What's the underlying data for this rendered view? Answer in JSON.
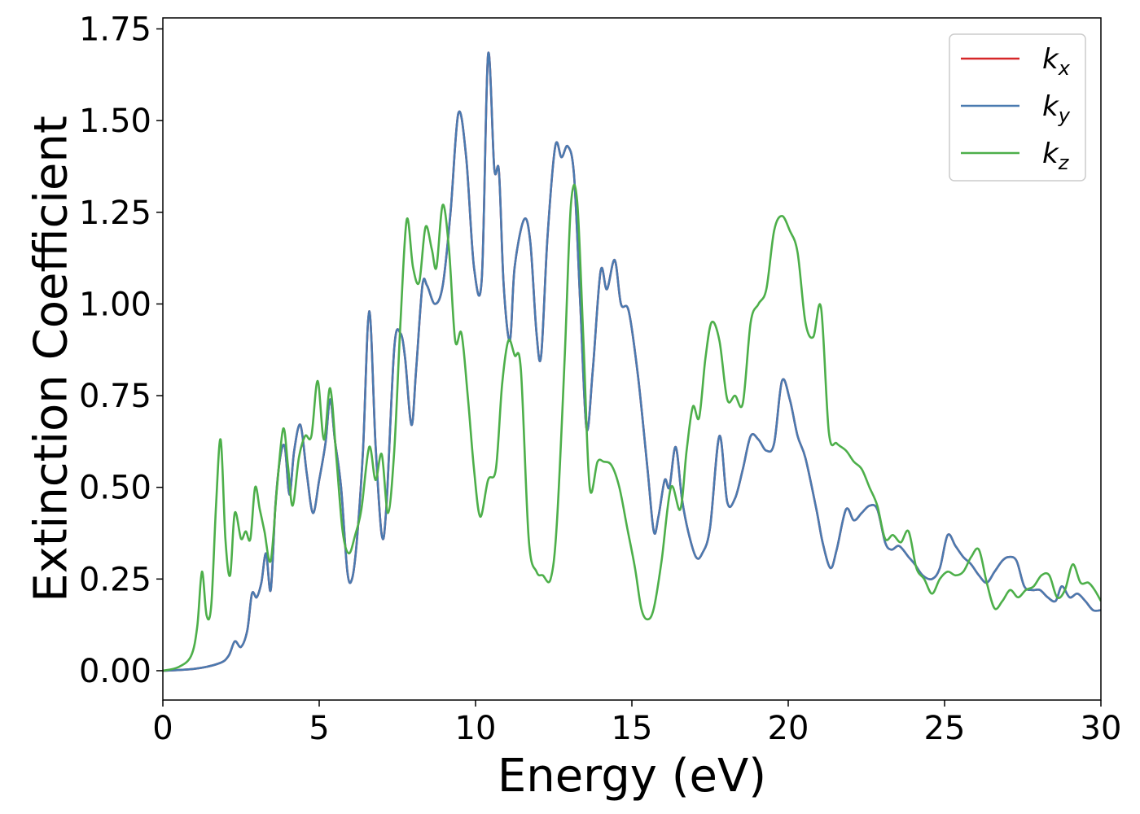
{
  "chart_data": {
    "type": "line",
    "title": "",
    "xlabel": "Energy (eV)",
    "ylabel": "Extinction Coefficient",
    "xlim": [
      0,
      30
    ],
    "ylim": [
      -0.08,
      1.78
    ],
    "xticks": [
      0,
      5,
      10,
      15,
      20,
      25,
      30
    ],
    "xtick_labels": [
      "0",
      "5",
      "10",
      "15",
      "20",
      "25",
      "30"
    ],
    "yticks": [
      0,
      0.25,
      0.5,
      0.75,
      1.0,
      1.25,
      1.5,
      1.75
    ],
    "ytick_labels": [
      "0.00",
      "0.25",
      "0.50",
      "0.75",
      "1.00",
      "1.25",
      "1.50",
      "1.75"
    ],
    "grid": false,
    "legend_position": "top-right",
    "series": [
      {
        "name": "k",
        "subscript": "x",
        "color": "#d62728",
        "x": [
          0,
          1,
          1.8,
          2.1,
          2.3,
          2.5,
          2.7,
          2.85,
          3.0,
          3.15,
          3.3,
          3.45,
          3.6,
          3.75,
          3.9,
          4.05,
          4.2,
          4.4,
          4.6,
          4.8,
          5.0,
          5.2,
          5.35,
          5.5,
          5.7,
          5.9,
          6.05,
          6.2,
          6.4,
          6.6,
          6.8,
          7.0,
          7.15,
          7.4,
          7.6,
          7.75,
          7.95,
          8.1,
          8.3,
          8.45,
          8.7,
          8.95,
          9.2,
          9.45,
          9.7,
          9.95,
          10.2,
          10.4,
          10.6,
          10.75,
          10.9,
          11.1,
          11.25,
          11.55,
          11.75,
          11.95,
          12.1,
          12.3,
          12.55,
          12.75,
          12.95,
          13.15,
          13.35,
          13.55,
          13.75,
          14.0,
          14.2,
          14.45,
          14.65,
          14.9,
          15.2,
          15.5,
          15.7,
          15.85,
          16.05,
          16.2,
          16.4,
          16.6,
          16.8,
          17.05,
          17.25,
          17.5,
          17.8,
          18.05,
          18.3,
          18.55,
          18.8,
          19.05,
          19.3,
          19.55,
          19.8,
          20.05,
          20.3,
          20.55,
          20.9,
          21.1,
          21.35,
          21.55,
          21.85,
          22.1,
          22.35,
          22.6,
          22.85,
          23.1,
          23.3,
          23.55,
          23.85,
          24.05,
          24.3,
          24.6,
          24.85,
          25.1,
          25.35,
          25.6,
          25.85,
          26.1,
          26.35,
          26.6,
          26.85,
          27.05,
          27.3,
          27.55,
          27.8,
          28.05,
          28.3,
          28.55,
          28.75,
          29.0,
          29.25,
          29.5,
          29.75,
          30
        ],
        "y": [
          0,
          0.005,
          0.02,
          0.04,
          0.08,
          0.065,
          0.11,
          0.21,
          0.2,
          0.24,
          0.32,
          0.22,
          0.45,
          0.58,
          0.61,
          0.48,
          0.6,
          0.67,
          0.54,
          0.43,
          0.52,
          0.62,
          0.74,
          0.63,
          0.5,
          0.27,
          0.25,
          0.35,
          0.6,
          0.98,
          0.62,
          0.37,
          0.45,
          0.88,
          0.92,
          0.85,
          0.67,
          0.82,
          1.05,
          1.05,
          1.0,
          1.05,
          1.25,
          1.52,
          1.4,
          1.1,
          1.07,
          1.68,
          1.37,
          1.36,
          1.05,
          0.9,
          1.1,
          1.23,
          1.17,
          0.92,
          0.86,
          1.18,
          1.43,
          1.4,
          1.43,
          1.35,
          1.0,
          0.66,
          0.82,
          1.09,
          1.04,
          1.12,
          1.0,
          0.98,
          0.8,
          0.55,
          0.38,
          0.42,
          0.52,
          0.5,
          0.61,
          0.47,
          0.38,
          0.31,
          0.32,
          0.39,
          0.64,
          0.46,
          0.47,
          0.55,
          0.64,
          0.63,
          0.6,
          0.62,
          0.79,
          0.74,
          0.64,
          0.58,
          0.44,
          0.35,
          0.28,
          0.33,
          0.44,
          0.41,
          0.43,
          0.45,
          0.44,
          0.35,
          0.33,
          0.34,
          0.31,
          0.29,
          0.26,
          0.25,
          0.28,
          0.37,
          0.34,
          0.31,
          0.29,
          0.26,
          0.24,
          0.27,
          0.3,
          0.31,
          0.3,
          0.23,
          0.22,
          0.22,
          0.2,
          0.19,
          0.23,
          0.2,
          0.21,
          0.19,
          0.165,
          0.165
        ]
      },
      {
        "name": "k",
        "subscript": "y",
        "color": "#4a7ab0",
        "x": [
          0,
          1,
          1.8,
          2.1,
          2.3,
          2.5,
          2.7,
          2.85,
          3.0,
          3.15,
          3.3,
          3.45,
          3.6,
          3.75,
          3.9,
          4.05,
          4.2,
          4.4,
          4.6,
          4.8,
          5.0,
          5.2,
          5.35,
          5.5,
          5.7,
          5.9,
          6.05,
          6.2,
          6.4,
          6.6,
          6.8,
          7.0,
          7.15,
          7.4,
          7.6,
          7.75,
          7.95,
          8.1,
          8.3,
          8.45,
          8.7,
          8.95,
          9.2,
          9.45,
          9.7,
          9.95,
          10.2,
          10.4,
          10.6,
          10.75,
          10.9,
          11.1,
          11.25,
          11.55,
          11.75,
          11.95,
          12.1,
          12.3,
          12.55,
          12.75,
          12.95,
          13.15,
          13.35,
          13.55,
          13.75,
          14.0,
          14.2,
          14.45,
          14.65,
          14.9,
          15.2,
          15.5,
          15.7,
          15.85,
          16.05,
          16.2,
          16.4,
          16.6,
          16.8,
          17.05,
          17.25,
          17.5,
          17.8,
          18.05,
          18.3,
          18.55,
          18.8,
          19.05,
          19.3,
          19.55,
          19.8,
          20.05,
          20.3,
          20.55,
          20.9,
          21.1,
          21.35,
          21.55,
          21.85,
          22.1,
          22.35,
          22.6,
          22.85,
          23.1,
          23.3,
          23.55,
          23.85,
          24.05,
          24.3,
          24.6,
          24.85,
          25.1,
          25.35,
          25.6,
          25.85,
          26.1,
          26.35,
          26.6,
          26.85,
          27.05,
          27.3,
          27.55,
          27.8,
          28.05,
          28.3,
          28.55,
          28.75,
          29.0,
          29.25,
          29.5,
          29.75,
          30
        ],
        "y": [
          0,
          0.005,
          0.02,
          0.04,
          0.08,
          0.065,
          0.11,
          0.21,
          0.2,
          0.24,
          0.32,
          0.22,
          0.45,
          0.58,
          0.61,
          0.48,
          0.6,
          0.67,
          0.54,
          0.43,
          0.52,
          0.62,
          0.74,
          0.63,
          0.5,
          0.27,
          0.25,
          0.35,
          0.6,
          0.98,
          0.62,
          0.37,
          0.45,
          0.88,
          0.92,
          0.85,
          0.67,
          0.82,
          1.05,
          1.05,
          1.0,
          1.05,
          1.25,
          1.52,
          1.4,
          1.1,
          1.07,
          1.68,
          1.37,
          1.36,
          1.05,
          0.9,
          1.1,
          1.23,
          1.17,
          0.92,
          0.86,
          1.18,
          1.43,
          1.4,
          1.43,
          1.35,
          1.0,
          0.66,
          0.82,
          1.09,
          1.04,
          1.12,
          1.0,
          0.98,
          0.8,
          0.55,
          0.38,
          0.42,
          0.52,
          0.5,
          0.61,
          0.47,
          0.38,
          0.31,
          0.32,
          0.39,
          0.64,
          0.46,
          0.47,
          0.55,
          0.64,
          0.63,
          0.6,
          0.62,
          0.79,
          0.74,
          0.64,
          0.58,
          0.44,
          0.35,
          0.28,
          0.33,
          0.44,
          0.41,
          0.43,
          0.45,
          0.44,
          0.35,
          0.33,
          0.34,
          0.31,
          0.29,
          0.26,
          0.25,
          0.28,
          0.37,
          0.34,
          0.31,
          0.29,
          0.26,
          0.24,
          0.27,
          0.3,
          0.31,
          0.3,
          0.23,
          0.22,
          0.22,
          0.2,
          0.19,
          0.23,
          0.2,
          0.21,
          0.19,
          0.165,
          0.165
        ]
      },
      {
        "name": "k",
        "subscript": "z",
        "color": "#4daf4a",
        "x": [
          0,
          0.5,
          0.9,
          1.1,
          1.25,
          1.4,
          1.55,
          1.7,
          1.85,
          2.0,
          2.15,
          2.3,
          2.5,
          2.65,
          2.8,
          2.95,
          3.1,
          3.25,
          3.45,
          3.65,
          3.85,
          4.0,
          4.15,
          4.35,
          4.55,
          4.75,
          4.95,
          5.15,
          5.35,
          5.55,
          5.75,
          5.95,
          6.15,
          6.35,
          6.6,
          6.8,
          7.0,
          7.2,
          7.4,
          7.6,
          7.8,
          8.0,
          8.2,
          8.4,
          8.6,
          8.75,
          8.95,
          9.15,
          9.35,
          9.55,
          9.75,
          9.95,
          10.15,
          10.4,
          10.65,
          10.85,
          11.05,
          11.25,
          11.45,
          11.7,
          11.95,
          12.15,
          12.4,
          12.6,
          12.85,
          13.05,
          13.25,
          13.45,
          13.65,
          13.9,
          14.1,
          14.35,
          14.6,
          14.85,
          15.1,
          15.3,
          15.5,
          15.7,
          15.95,
          16.25,
          16.55,
          16.75,
          16.95,
          17.15,
          17.35,
          17.55,
          17.8,
          18.05,
          18.3,
          18.55,
          18.8,
          19.05,
          19.3,
          19.55,
          19.8,
          20.05,
          20.3,
          20.55,
          20.8,
          21.05,
          21.3,
          21.55,
          21.85,
          22.1,
          22.35,
          22.6,
          22.85,
          23.1,
          23.35,
          23.6,
          23.85,
          24.1,
          24.35,
          24.6,
          24.85,
          25.1,
          25.35,
          25.6,
          25.85,
          26.1,
          26.35,
          26.6,
          26.85,
          27.1,
          27.35,
          27.6,
          27.85,
          28.1,
          28.35,
          28.6,
          28.85,
          29.1,
          29.35,
          29.6,
          29.8,
          30
        ],
        "y": [
          0,
          0.01,
          0.04,
          0.12,
          0.27,
          0.15,
          0.18,
          0.45,
          0.63,
          0.36,
          0.26,
          0.43,
          0.36,
          0.38,
          0.36,
          0.5,
          0.44,
          0.38,
          0.3,
          0.5,
          0.66,
          0.56,
          0.45,
          0.58,
          0.64,
          0.64,
          0.79,
          0.63,
          0.77,
          0.58,
          0.38,
          0.32,
          0.37,
          0.44,
          0.61,
          0.52,
          0.59,
          0.43,
          0.6,
          0.95,
          1.23,
          1.1,
          1.06,
          1.21,
          1.15,
          1.1,
          1.27,
          1.15,
          0.9,
          0.92,
          0.75,
          0.55,
          0.42,
          0.52,
          0.55,
          0.78,
          0.9,
          0.86,
          0.82,
          0.36,
          0.27,
          0.26,
          0.25,
          0.4,
          0.85,
          1.27,
          1.28,
          0.9,
          0.5,
          0.57,
          0.57,
          0.56,
          0.5,
          0.39,
          0.28,
          0.17,
          0.14,
          0.17,
          0.3,
          0.5,
          0.44,
          0.6,
          0.72,
          0.69,
          0.85,
          0.95,
          0.9,
          0.74,
          0.75,
          0.73,
          0.95,
          1.0,
          1.04,
          1.2,
          1.24,
          1.2,
          1.14,
          0.95,
          0.91,
          0.99,
          0.65,
          0.62,
          0.6,
          0.57,
          0.55,
          0.5,
          0.45,
          0.36,
          0.37,
          0.35,
          0.38,
          0.28,
          0.25,
          0.21,
          0.25,
          0.27,
          0.26,
          0.27,
          0.31,
          0.33,
          0.24,
          0.17,
          0.19,
          0.22,
          0.2,
          0.22,
          0.23,
          0.26,
          0.26,
          0.2,
          0.22,
          0.29,
          0.24,
          0.24,
          0.22,
          0.19
        ]
      }
    ]
  }
}
